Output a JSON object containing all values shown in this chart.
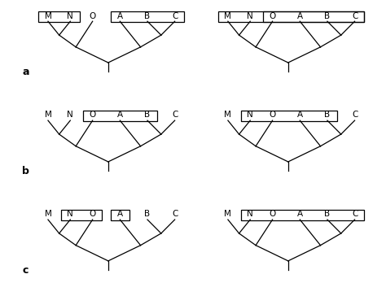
{
  "bg_color": "#ffffff",
  "line_color": "#000000",
  "label_fontsize": 7.5,
  "row_label_fontsize": 9,
  "taxa": [
    "M",
    "N",
    "O",
    "A",
    "B",
    "C"
  ],
  "panels": [
    {
      "row": 0,
      "col": 0,
      "boxes": [
        [
          "M",
          "N"
        ],
        [
          "A",
          "B",
          "C"
        ]
      ]
    },
    {
      "row": 0,
      "col": 1,
      "boxes": [
        [
          "M",
          "N",
          "O",
          "A",
          "B",
          "C"
        ],
        [
          "O",
          "A",
          "B",
          "C"
        ]
      ]
    },
    {
      "row": 1,
      "col": 0,
      "boxes": [
        [
          "O",
          "A",
          "B"
        ]
      ]
    },
    {
      "row": 1,
      "col": 1,
      "boxes": [
        [
          "N",
          "O",
          "A",
          "B"
        ]
      ]
    },
    {
      "row": 2,
      "col": 0,
      "boxes": [
        [
          "N",
          "O"
        ],
        [
          "A"
        ]
      ]
    },
    {
      "row": 2,
      "col": 1,
      "boxes": [
        [
          "N",
          "O",
          "A",
          "B",
          "C"
        ]
      ]
    }
  ],
  "row_labels": [
    "a",
    "b",
    "c"
  ]
}
